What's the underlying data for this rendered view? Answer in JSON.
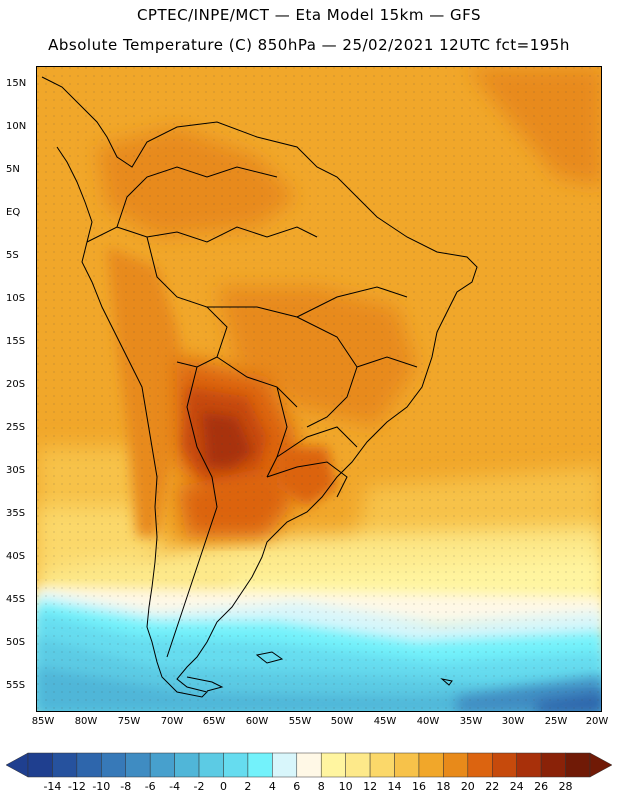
{
  "header": {
    "line1": "CPTEC/INPE/MCT —  Eta Model 15km — GFS",
    "line2": "Absolute Temperature (C) 850hPa — 25/02/2021 12UTC fct=195h"
  },
  "map": {
    "region": "South America",
    "lat_labels": [
      "15N",
      "10N",
      "5N",
      "EQ",
      "5S",
      "10S",
      "15S",
      "20S",
      "25S",
      "30S",
      "35S",
      "40S",
      "45S",
      "50S",
      "55S"
    ],
    "lon_labels": [
      "85W",
      "80W",
      "75W",
      "70W",
      "65W",
      "60W",
      "55W",
      "50W",
      "45W",
      "40W",
      "35W",
      "30W",
      "25W",
      "20W"
    ]
  },
  "colorbar": {
    "labels": [
      "-14",
      "-12",
      "-10",
      "-8",
      "-6",
      "-4",
      "-2",
      "0",
      "2",
      "4",
      "6",
      "8",
      "10",
      "12",
      "14",
      "16",
      "18",
      "20",
      "22",
      "24",
      "26",
      "28"
    ],
    "colors": [
      "#1f3f8f",
      "#26529e",
      "#2e66ac",
      "#3779b8",
      "#3f8cc2",
      "#47a0cd",
      "#50b6d8",
      "#5ccbe4",
      "#66dcef",
      "#73f2fb",
      "#d8f6fb",
      "#fff8e6",
      "#fff5a0",
      "#fde98a",
      "#fbd86a",
      "#f7c24a",
      "#f1a72a",
      "#e88a1a",
      "#dc6410",
      "#c64a0c",
      "#a8300a",
      "#8a2208",
      "#701a06"
    ]
  }
}
